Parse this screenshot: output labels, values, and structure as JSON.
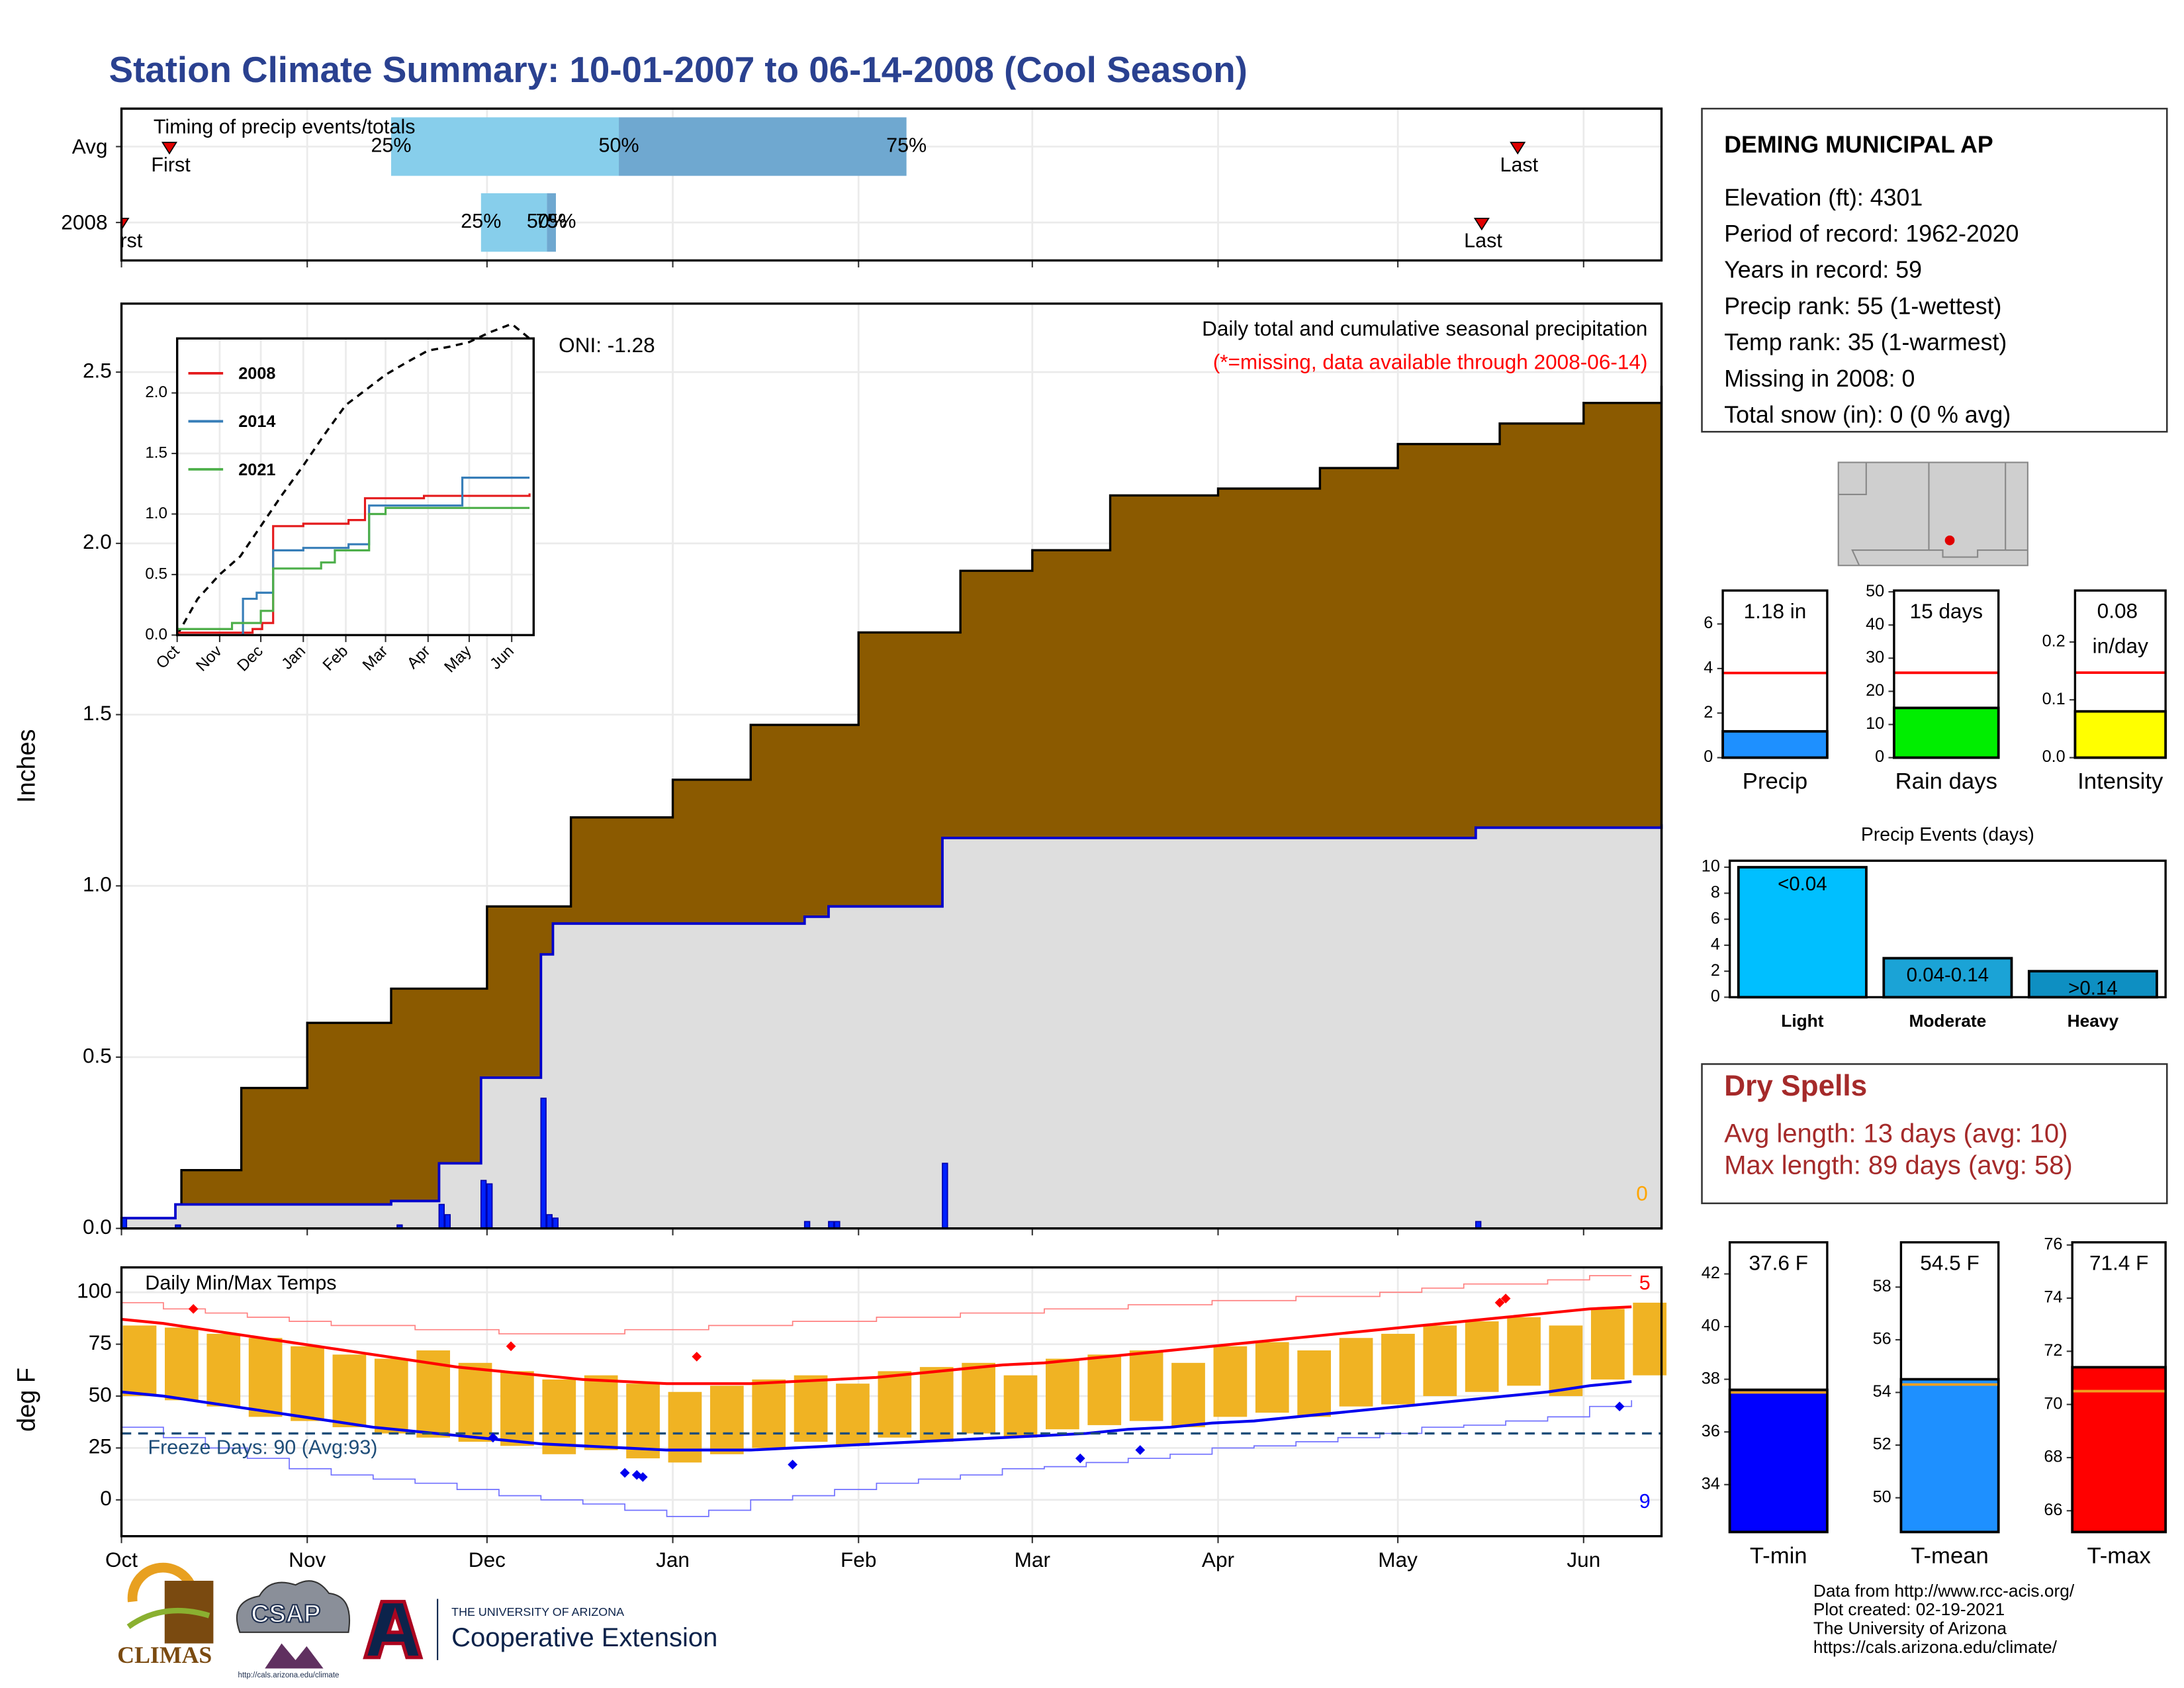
{
  "title": "Station Climate Summary: 10-01-2007 to 06-14-2008 (Cool Season)",
  "chart_data": [
    {
      "type": "timing",
      "title": "Timing of precip events/totals",
      "categories": [
        "Avg",
        "2008"
      ],
      "xlim": [
        0,
        257
      ],
      "xticks": [
        0,
        31,
        61,
        92,
        123,
        152,
        183,
        213,
        244
      ],
      "grid": true,
      "first_label": "First",
      "last_label": "Last",
      "quantile_labels": [
        "25%",
        "50%",
        "75%"
      ],
      "first": [
        8,
        0
      ],
      "last": [
        233,
        227
      ],
      "quantiles": [
        [
          45,
          83,
          131
        ],
        [
          60,
          71,
          72.5
        ]
      ],
      "colors": [
        "#87ceeb",
        "#6fa8d0"
      ],
      "marker_color": "#e00000"
    },
    {
      "type": "area",
      "title": "Daily total and cumulative seasonal precipitation",
      "subtitle": "(*=missing, data available through 2008-06-14)",
      "annotations": [
        "ONI: -1.28",
        "0"
      ],
      "ylabel": "Inches",
      "xlim": [
        0,
        257
      ],
      "xticks": [
        0,
        31,
        61,
        92,
        123,
        152,
        183,
        213,
        244
      ],
      "ylim": [
        0,
        2.7
      ],
      "yticks": [
        {
          "value": 0,
          "label": "0.0"
        },
        0.5,
        {
          "value": 1,
          "label": "1.0"
        },
        1.5,
        {
          "value": 2,
          "label": "2.0"
        },
        2.5
      ],
      "grid": true,
      "average": {
        "color": "#8b5a00",
        "x": [
          0,
          10,
          20,
          31,
          45,
          61,
          75,
          92,
          105,
          123,
          140,
          152,
          165,
          183,
          200,
          213,
          230,
          244,
          257
        ],
        "values": [
          0.03,
          0.17,
          0.41,
          0.6,
          0.7,
          0.94,
          1.2,
          1.31,
          1.47,
          1.74,
          1.92,
          1.98,
          2.14,
          2.16,
          2.22,
          2.29,
          2.35,
          2.41,
          2.46
        ]
      },
      "cumulative": {
        "color": "#0000cc",
        "fill": "#dedede",
        "x": [
          0,
          9,
          45,
          53,
          60,
          70,
          72,
          114,
          118,
          137,
          226,
          257
        ],
        "values": [
          0.03,
          0.07,
          0.08,
          0.19,
          0.44,
          0.8,
          0.89,
          0.91,
          0.94,
          1.14,
          1.17,
          1.18
        ]
      },
      "daily": {
        "color": "#0022ff",
        "x": [
          0,
          9,
          46,
          53,
          54,
          60,
          61,
          70,
          71,
          72,
          114,
          118,
          119,
          137,
          226
        ],
        "values": [
          0.03,
          0.01,
          0.01,
          0.07,
          0.04,
          0.14,
          0.13,
          0.38,
          0.04,
          0.03,
          0.02,
          0.02,
          0.02,
          0.19,
          0.02
        ]
      },
      "annotation_colors": [
        "#000000",
        "#ffa500"
      ],
      "subtitle_color": "#ff0000"
    },
    {
      "type": "line",
      "xlim": [
        0,
        260
      ],
      "xticks": [
        {
          "value": 0,
          "label": "Oct"
        },
        {
          "value": 31,
          "label": "Nov"
        },
        {
          "value": 61,
          "label": "Dec"
        },
        {
          "value": 92,
          "label": "Jan"
        },
        {
          "value": 123,
          "label": "Feb"
        },
        {
          "value": 152,
          "label": "Mar"
        },
        {
          "value": 183,
          "label": "Apr"
        },
        {
          "value": 213,
          "label": "May"
        },
        {
          "value": 244,
          "label": "Jun"
        }
      ],
      "ylim": [
        0,
        2.45
      ],
      "yticks": [
        {
          "value": 0,
          "label": "0.0"
        },
        0.5,
        {
          "value": 1,
          "label": "1.0"
        },
        1.5,
        {
          "value": 2,
          "label": "2.0"
        }
      ],
      "grid": true,
      "average": {
        "color": "#000000",
        "x": [
          0,
          15,
          31,
          46,
          61,
          76,
          92,
          107,
          123,
          137,
          152,
          167,
          183,
          198,
          213,
          228,
          244,
          257
        ],
        "values": [
          0,
          0.3,
          0.5,
          0.65,
          0.9,
          1.15,
          1.4,
          1.65,
          1.9,
          2.02,
          2.15,
          2.25,
          2.35,
          2.38,
          2.42,
          2.5,
          2.57,
          2.45
        ]
      },
      "series": [
        {
          "name": "2008",
          "color": "#e41a1c",
          "x": [
            0,
            55,
            62,
            70,
            92,
            125,
            137,
            180,
            257
          ],
          "values": [
            0.02,
            0.05,
            0.1,
            0.9,
            0.92,
            0.95,
            1.13,
            1.15,
            1.17
          ]
        },
        {
          "name": "2014",
          "color": "#377eb8",
          "x": [
            0,
            48,
            58,
            70,
            92,
            125,
            140,
            200,
            208,
            257
          ],
          "values": [
            0,
            0.3,
            0.35,
            0.7,
            0.72,
            0.75,
            1.07,
            1.07,
            1.3,
            1.3
          ]
        },
        {
          "name": "2021",
          "color": "#4daf4a",
          "x": [
            0,
            40,
            61,
            70,
            105,
            115,
            140,
            152,
            257
          ],
          "values": [
            0.05,
            0.1,
            0.2,
            0.55,
            0.6,
            0.7,
            1.0,
            1.05,
            1.05
          ]
        }
      ]
    },
    {
      "type": "temps",
      "title": "Daily Min/Max Temps",
      "ylabel": "deg F",
      "xlim": [
        0,
        257
      ],
      "xticks": [
        {
          "value": 0,
          "label": "Oct"
        },
        {
          "value": 31,
          "label": "Nov"
        },
        {
          "value": 61,
          "label": "Dec"
        },
        {
          "value": 92,
          "label": "Jan"
        },
        {
          "value": 123,
          "label": "Feb"
        },
        {
          "value": 152,
          "label": "Mar"
        },
        {
          "value": 183,
          "label": "Apr"
        },
        {
          "value": 213,
          "label": "May"
        },
        {
          "value": 244,
          "label": "Jun"
        }
      ],
      "ylim": [
        -17.5,
        112
      ],
      "yticks": [
        0,
        25,
        50,
        75,
        100
      ],
      "grid": true,
      "freeze": {
        "value": 32,
        "label": "Freeze Days: 90 (Avg:93)",
        "color": "#1f4e79"
      },
      "annotations": [
        {
          "text": "5",
          "color": "#ff0000"
        },
        {
          "text": "9",
          "color": "#0000ff"
        }
      ],
      "bar_color": "#f0b323",
      "avg_max_color": "#ff0000",
      "avg_min_color": "#0000ee",
      "record_max_color": "#ff8080",
      "record_min_color": "#7070ff",
      "x": [
        0,
        7,
        14,
        21,
        28,
        35,
        42,
        49,
        56,
        63,
        70,
        77,
        84,
        91,
        98,
        105,
        112,
        119,
        126,
        133,
        140,
        147,
        154,
        161,
        168,
        175,
        182,
        189,
        196,
        203,
        210,
        217,
        224,
        231,
        238,
        245,
        252
      ],
      "max": [
        84,
        83,
        80,
        78,
        74,
        70,
        68,
        72,
        66,
        62,
        58,
        60,
        56,
        52,
        55,
        58,
        60,
        56,
        62,
        64,
        66,
        60,
        68,
        70,
        72,
        66,
        74,
        76,
        72,
        78,
        80,
        84,
        86,
        88,
        84,
        92,
        95
      ],
      "min": [
        50,
        48,
        45,
        40,
        38,
        35,
        32,
        30,
        28,
        26,
        22,
        24,
        20,
        18,
        22,
        25,
        28,
        26,
        30,
        28,
        32,
        30,
        34,
        36,
        38,
        35,
        40,
        42,
        40,
        45,
        46,
        50,
        52,
        55,
        50,
        58,
        60
      ],
      "avg_max": [
        87,
        85,
        82,
        79,
        76,
        73,
        70,
        67,
        64,
        62,
        60,
        58,
        57,
        56,
        56,
        56,
        57,
        58,
        59,
        61,
        63,
        65,
        66,
        68,
        70,
        72,
        74,
        76,
        78,
        80,
        82,
        84,
        86,
        88,
        90,
        92,
        93
      ],
      "avg_min": [
        52,
        50,
        47,
        44,
        41,
        38,
        35,
        33,
        31,
        29,
        27,
        26,
        25,
        24,
        24,
        24,
        25,
        26,
        27,
        28,
        29,
        30,
        31,
        32,
        34,
        35,
        37,
        38,
        40,
        42,
        44,
        46,
        48,
        50,
        52,
        55,
        57
      ],
      "record_max": [
        95,
        92,
        90,
        88,
        86,
        84,
        84,
        82,
        82,
        80,
        80,
        80,
        82,
        82,
        84,
        84,
        86,
        86,
        88,
        88,
        90,
        90,
        92,
        92,
        94,
        94,
        96,
        96,
        98,
        98,
        100,
        102,
        104,
        104,
        106,
        108,
        108
      ],
      "record_min": [
        35,
        30,
        25,
        20,
        15,
        12,
        10,
        8,
        5,
        2,
        0,
        -2,
        -5,
        -8,
        -5,
        0,
        2,
        5,
        8,
        10,
        12,
        15,
        16,
        18,
        20,
        22,
        25,
        26,
        28,
        30,
        32,
        35,
        36,
        38,
        40,
        45,
        48
      ],
      "record_high_days": {
        "x": [
          12,
          65,
          96,
          230,
          231
        ],
        "values": [
          92,
          74,
          69,
          95,
          97
        ]
      },
      "record_low_days": {
        "x": [
          62,
          84,
          86,
          87,
          112,
          160,
          170,
          250
        ],
        "values": [
          30,
          13,
          12,
          11,
          17,
          20,
          24,
          45
        ]
      }
    },
    {
      "type": "bar",
      "categories": [
        "Precip"
      ],
      "values": [
        1.18
      ],
      "value_labels": [
        "1.18 in"
      ],
      "average": 3.8,
      "average_color": "#ff0000",
      "color": "#1e90ff",
      "ylim": [
        0,
        7.5
      ],
      "yticks": [
        0,
        2,
        4,
        6
      ]
    },
    {
      "type": "bar",
      "categories": [
        "Rain days"
      ],
      "values": [
        15
      ],
      "value_labels": [
        "15 days"
      ],
      "average": 25.6,
      "average_color": "#ff0000",
      "color": "#00ee00",
      "ylim": [
        0,
        50.4
      ],
      "yticks": [
        0,
        10,
        20,
        30,
        40,
        50
      ]
    },
    {
      "type": "bar",
      "categories": [
        "Intensity"
      ],
      "values": [
        0.08
      ],
      "value_labels": [
        "0.08 in/day"
      ],
      "average": 0.147,
      "average_color": "#ff0000",
      "color": "#ffff00",
      "ylim": [
        0,
        0.289
      ],
      "yticks": [
        {
          "value": 0,
          "label": "0.0"
        },
        0.1,
        0.2
      ]
    },
    {
      "type": "bar",
      "title": "Precip Events (days)",
      "categories": [
        "Light",
        "Moderate",
        "Heavy"
      ],
      "values": [
        10,
        3,
        2
      ],
      "value_labels": [
        "<0.04",
        "0.04-0.14",
        ">0.14"
      ],
      "colors": [
        "#00bfff",
        "#1ba3d6",
        "#0e8fc2"
      ],
      "ylim": [
        0,
        10.5
      ],
      "yticks": [
        0,
        2,
        4,
        6,
        8,
        10
      ]
    },
    {
      "type": "bar",
      "categories": [
        "T-min"
      ],
      "values": [
        37.6
      ],
      "value_labels": [
        "37.6 F"
      ],
      "average": 37.5,
      "average_color": "#f0a020",
      "color": "#0000ff",
      "ylim": [
        32.2,
        43.2
      ],
      "yticks": [
        34,
        36,
        38,
        40,
        42
      ]
    },
    {
      "type": "bar",
      "categories": [
        "T-mean"
      ],
      "values": [
        54.5
      ],
      "value_labels": [
        "54.5 F"
      ],
      "average": 54.3,
      "average_color": "#f0a020",
      "color": "#1e90ff",
      "ylim": [
        48.7,
        59.7
      ],
      "yticks": [
        50,
        52,
        54,
        56,
        58
      ]
    },
    {
      "type": "bar",
      "categories": [
        "T-max"
      ],
      "values": [
        71.4
      ],
      "value_labels": [
        "71.4 F"
      ],
      "average": 70.5,
      "average_color": "#f0a020",
      "color": "#ff0000",
      "ylim": [
        65.2,
        76.1
      ],
      "yticks": [
        66,
        68,
        70,
        72,
        74,
        76
      ]
    }
  ],
  "station": {
    "name": "DEMING MUNICIPAL AP",
    "lines": [
      "Elevation (ft): 4301",
      "Period of record: 1962-2020",
      "Years in record: 59",
      "Precip rank: 55 (1-wettest)",
      "Temp rank: 35 (1-warmest)",
      "Missing in 2008: 0",
      "Total snow (in): 0 (0 % avg)"
    ]
  },
  "dry_spells": {
    "title": "Dry Spells",
    "lines": [
      "Avg length: 13 days (avg: 10)",
      "Max length: 89 days (avg: 58)"
    ]
  },
  "footer": [
    "Data from http://www.rcc-acis.org/",
    "Plot created: 02-19-2021",
    "The University of Arizona",
    "https://cals.arizona.edu/climate/"
  ],
  "logos": {
    "climas": "CLIMAS",
    "csap": "CSAP",
    "csap_url": "http://cals.arizona.edu/climate",
    "university": "THE UNIVERSITY OF ARIZONA",
    "extension": "Cooperative Extension"
  }
}
